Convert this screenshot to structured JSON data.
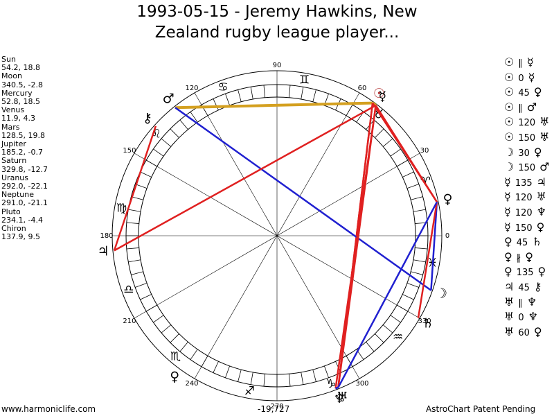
{
  "header": {
    "title_line1": "1993-05-15 - Jeremy Hawkins, New",
    "title_line2": "Zealand rugby league player..."
  },
  "planets": [
    {
      "name": "Sun",
      "coords": "54.2, 18.8",
      "glyph": "☉",
      "color": "#b03030"
    },
    {
      "name": "Moon",
      "coords": "340.5, -2.8",
      "glyph": "☽",
      "color": "#000000"
    },
    {
      "name": "Mercury",
      "coords": "52.8, 18.5",
      "glyph": "☿",
      "color": "#000000"
    },
    {
      "name": "Venus",
      "coords": "11.9, 4.3",
      "glyph": "♀",
      "color": "#000000"
    },
    {
      "name": "Mars",
      "coords": "128.5, 19.8",
      "glyph": "♂",
      "color": "#000000"
    },
    {
      "name": "Jupiter",
      "coords": "185.2, -0.7",
      "glyph": "♃",
      "color": "#000000"
    },
    {
      "name": "Saturn",
      "coords": "329.8, -12.7",
      "glyph": "♄",
      "color": "#000000"
    },
    {
      "name": "Uranus",
      "coords": "292.0, -22.1",
      "glyph": "♅",
      "color": "#000000"
    },
    {
      "name": "Neptune",
      "coords": "291.0, -21.1",
      "glyph": "♆",
      "color": "#000000"
    },
    {
      "name": "Pluto",
      "coords": "234.1, -4.4",
      "glyph": "♀",
      "color": "#000000"
    },
    {
      "name": "Chiron",
      "coords": "137.9, 9.5",
      "glyph": "⚷",
      "color": "#000000"
    }
  ],
  "aspects": [
    {
      "p1": "☉",
      "aspect": "∥",
      "p2": "☿",
      "color": "#d4a020"
    },
    {
      "p1": "☉",
      "aspect": "0",
      "p2": "☿",
      "color": "#d4a020"
    },
    {
      "p1": "☉",
      "aspect": "45",
      "p2": "♀",
      "color": "#e02020"
    },
    {
      "p1": "☉",
      "aspect": "∥",
      "p2": "♂",
      "color": "#d4a020"
    },
    {
      "p1": "☉",
      "aspect": "120",
      "p2": "♅",
      "color": "#e02020"
    },
    {
      "p1": "☉",
      "aspect": "150",
      "p2": "♅",
      "color": "#e02020"
    },
    {
      "p1": "☽",
      "aspect": "30",
      "p2": "♀",
      "color": "#2020d0"
    },
    {
      "p1": "☽",
      "aspect": "150",
      "p2": "♂",
      "color": "#2020d0"
    },
    {
      "p1": "☿",
      "aspect": "135",
      "p2": "♃",
      "color": "#e02020"
    },
    {
      "p1": "☿",
      "aspect": "120",
      "p2": "♅",
      "color": "#e02020"
    },
    {
      "p1": "☿",
      "aspect": "120",
      "p2": "♆",
      "color": "#e02020"
    },
    {
      "p1": "☿",
      "aspect": "150",
      "p2": "♀",
      "color": "#e02020"
    },
    {
      "p1": "♀",
      "aspect": "45",
      "p2": "♄",
      "color": "#e02020"
    },
    {
      "p1": "♀",
      "aspect": "∦",
      "p2": "♀",
      "color": "#e02020"
    },
    {
      "p1": "♀",
      "aspect": "135",
      "p2": "♀",
      "color": "#e02020"
    },
    {
      "p1": "♃",
      "aspect": "45",
      "p2": "⚷",
      "color": "#e02020"
    },
    {
      "p1": "♅",
      "aspect": "∥",
      "p2": "♆",
      "color": "#2020d0"
    },
    {
      "p1": "♅",
      "aspect": "0",
      "p2": "♆",
      "color": "#2020d0"
    },
    {
      "p1": "♅",
      "aspect": "60",
      "p2": "♀",
      "color": "#2020d0"
    }
  ],
  "wheel": {
    "degree_labels": [
      0,
      30,
      60,
      90,
      120,
      150,
      180,
      210,
      240,
      270,
      300,
      330
    ],
    "signs": [
      "♈",
      "♉",
      "♊",
      "♋",
      "♌",
      "♍",
      "♎",
      "♏",
      "♐",
      "♑",
      "♒",
      "♓"
    ]
  },
  "footer": {
    "site": "www.harmoniclife.com",
    "number": "-19,727",
    "notice": "AstroChart Patent Pending"
  }
}
